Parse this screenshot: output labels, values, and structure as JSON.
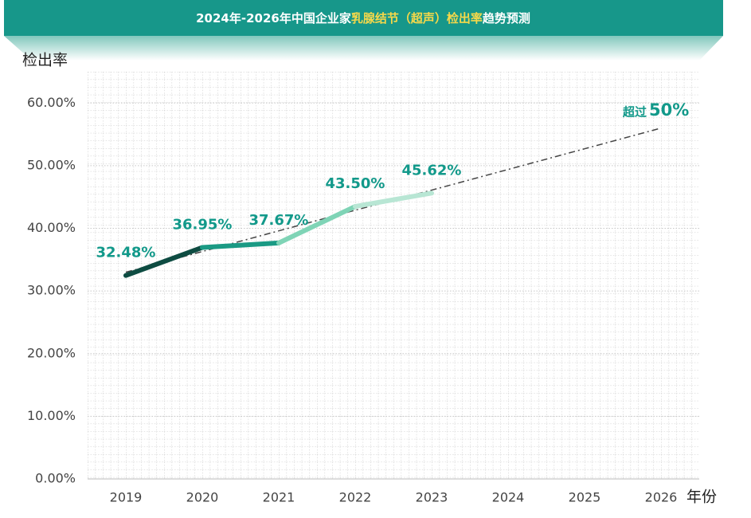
{
  "chart_data": {
    "type": "line",
    "title_parts": [
      "2024年-2026年中国企业家",
      "乳腺结节（超声）检出率",
      "趋势预测"
    ],
    "y_label": "检出率",
    "x_label": "年份",
    "categories": [
      "2019",
      "2020",
      "2021",
      "2022",
      "2023",
      "2024",
      "2025",
      "2026"
    ],
    "values": [
      32.48,
      36.95,
      37.67,
      43.5,
      45.62,
      null,
      null,
      null
    ],
    "value_labels": [
      "32.48%",
      "36.95%",
      "37.67%",
      "43.50%",
      "45.62%",
      null,
      null,
      null
    ],
    "segment_colors": [
      "#0e4c42",
      "#1a9a84",
      "#7fd4b6",
      "#b8e6d4"
    ],
    "trend_values": [
      33.0,
      36.3,
      39.6,
      42.9,
      46.1,
      49.4,
      52.7,
      56.0
    ],
    "trend_color": "#444444",
    "annotation": [
      "超过",
      "50%"
    ],
    "ylim": [
      0,
      65
    ],
    "yticks": [
      {
        "value": 0,
        "label": "0.00%"
      },
      {
        "value": 10,
        "label": "10.00%"
      },
      {
        "value": 20,
        "label": "20.00%"
      },
      {
        "value": 30,
        "label": "30.00%"
      },
      {
        "value": 40,
        "label": "40.00%"
      },
      {
        "value": 50,
        "label": "50.00%"
      },
      {
        "value": 60,
        "label": "60.00%"
      }
    ],
    "grid": true
  }
}
